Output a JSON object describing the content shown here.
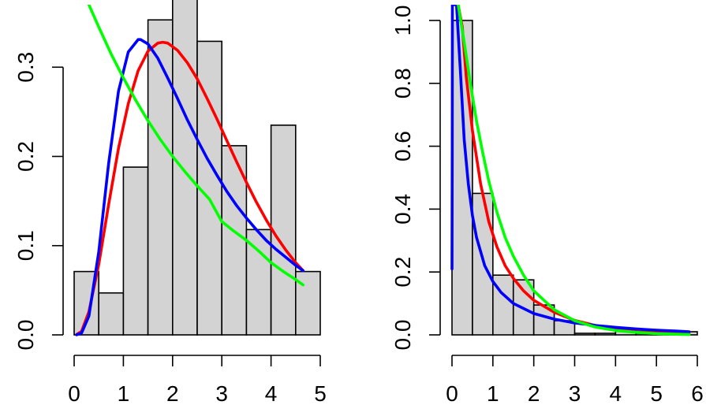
{
  "chart_data": [
    {
      "type": "histogram",
      "title": "",
      "xlabel": "",
      "ylabel": "",
      "xlim": [
        0,
        5
      ],
      "ylim": [
        0,
        0.37
      ],
      "x_ticks": [
        "0",
        "1",
        "2",
        "3",
        "4",
        "5"
      ],
      "y_ticks": [
        "0.0",
        "0.1",
        "0.2",
        "0.3"
      ],
      "bar_fill": "#d3d3d3",
      "bars": [
        {
          "x0": 0.0,
          "x1": 0.5,
          "density": 0.071
        },
        {
          "x0": 0.5,
          "x1": 1.0,
          "density": 0.047
        },
        {
          "x0": 1.0,
          "x1": 1.5,
          "density": 0.188
        },
        {
          "x0": 1.5,
          "x1": 2.0,
          "density": 0.353
        },
        {
          "x0": 2.0,
          "x1": 2.5,
          "density": 0.376
        },
        {
          "x0": 2.5,
          "x1": 3.0,
          "density": 0.329
        },
        {
          "x0": 3.0,
          "x1": 3.5,
          "density": 0.212
        },
        {
          "x0": 3.5,
          "x1": 4.0,
          "density": 0.118
        },
        {
          "x0": 4.0,
          "x1": 4.5,
          "density": 0.235
        },
        {
          "x0": 4.5,
          "x1": 5.0,
          "density": 0.071
        }
      ],
      "series": [
        {
          "color": "#ff0000",
          "points": [
            [
              0.05,
              0.0004
            ],
            [
              0.15,
              0.004
            ],
            [
              0.3,
              0.026
            ],
            [
              0.5,
              0.079
            ],
            [
              0.7,
              0.146
            ],
            [
              0.9,
              0.209
            ],
            [
              1.1,
              0.259
            ],
            [
              1.3,
              0.296
            ],
            [
              1.5,
              0.318
            ],
            [
              1.7,
              0.327
            ],
            [
              1.8,
              0.328
            ],
            [
              1.9,
              0.327
            ],
            [
              2.1,
              0.319
            ],
            [
              2.3,
              0.305
            ],
            [
              2.5,
              0.287
            ],
            [
              2.7,
              0.265
            ],
            [
              2.9,
              0.242
            ],
            [
              3.1,
              0.218
            ],
            [
              3.3,
              0.194
            ],
            [
              3.5,
              0.171
            ],
            [
              3.7,
              0.149
            ],
            [
              3.9,
              0.129
            ],
            [
              4.1,
              0.111
            ],
            [
              4.3,
              0.095
            ],
            [
              4.5,
              0.081
            ],
            [
              4.65,
              0.072
            ]
          ]
        },
        {
          "color": "#0000ff",
          "points": [
            [
              0.05,
              0.0001
            ],
            [
              0.15,
              0.002
            ],
            [
              0.3,
              0.021
            ],
            [
              0.5,
              0.093
            ],
            [
              0.7,
              0.192
            ],
            [
              0.9,
              0.273
            ],
            [
              1.1,
              0.317
            ],
            [
              1.3,
              0.331
            ],
            [
              1.35,
              0.331
            ],
            [
              1.5,
              0.326
            ],
            [
              1.7,
              0.31
            ],
            [
              1.9,
              0.288
            ],
            [
              2.1,
              0.265
            ],
            [
              2.3,
              0.241
            ],
            [
              2.5,
              0.219
            ],
            [
              2.7,
              0.198
            ],
            [
              2.9,
              0.179
            ],
            [
              3.1,
              0.161
            ],
            [
              3.3,
              0.145
            ],
            [
              3.5,
              0.131
            ],
            [
              3.7,
              0.118
            ],
            [
              3.9,
              0.106
            ],
            [
              4.1,
              0.096
            ],
            [
              4.3,
              0.087
            ],
            [
              4.5,
              0.078
            ],
            [
              4.65,
              0.072
            ]
          ]
        },
        {
          "color": "#00ff00",
          "points": [
            [
              0.3,
              0.37
            ],
            [
              0.5,
              0.345
            ],
            [
              0.75,
              0.315
            ],
            [
              1.0,
              0.288
            ],
            [
              1.25,
              0.263
            ],
            [
              1.5,
              0.24
            ],
            [
              1.75,
              0.219
            ],
            [
              2.0,
              0.2
            ],
            [
              2.25,
              0.183
            ],
            [
              2.5,
              0.167
            ],
            [
              2.75,
              0.152
            ],
            [
              3.0,
              0.127
            ],
            [
              3.25,
              0.116
            ],
            [
              3.5,
              0.106
            ],
            [
              3.75,
              0.094
            ],
            [
              4.0,
              0.081
            ],
            [
              4.25,
              0.071
            ],
            [
              4.5,
              0.062
            ],
            [
              4.65,
              0.056
            ]
          ]
        }
      ]
    },
    {
      "type": "histogram",
      "title": "",
      "xlabel": "",
      "ylabel": "",
      "xlim": [
        0,
        6
      ],
      "ylim": [
        0,
        1.05
      ],
      "x_ticks": [
        "0",
        "1",
        "2",
        "3",
        "4",
        "5",
        "6"
      ],
      "y_ticks": [
        "0.0",
        "0.2",
        "0.4",
        "0.6",
        "0.8",
        "1.0"
      ],
      "bar_fill": "#d3d3d3",
      "bars": [
        {
          "x0": 0.0,
          "x1": 0.5,
          "density": 1.0
        },
        {
          "x0": 0.5,
          "x1": 1.0,
          "density": 0.45
        },
        {
          "x0": 1.0,
          "x1": 1.5,
          "density": 0.19
        },
        {
          "x0": 1.5,
          "x1": 2.0,
          "density": 0.175
        },
        {
          "x0": 2.0,
          "x1": 2.5,
          "density": 0.095
        },
        {
          "x0": 2.5,
          "x1": 3.0,
          "density": 0.045
        },
        {
          "x0": 3.0,
          "x1": 3.5,
          "density": 0.005
        },
        {
          "x0": 3.5,
          "x1": 4.0,
          "density": 0.005
        },
        {
          "x0": 4.0,
          "x1": 4.5,
          "density": 0.015
        },
        {
          "x0": 4.5,
          "x1": 5.0,
          "density": 0.005
        },
        {
          "x0": 5.0,
          "x1": 5.5,
          "density": 0.005
        },
        {
          "x0": 5.5,
          "x1": 6.0,
          "density": 0.01
        }
      ],
      "series": [
        {
          "color": "#ff0000",
          "points": [
            [
              0.15,
              1.05
            ],
            [
              0.25,
              0.98
            ],
            [
              0.35,
              0.82
            ],
            [
              0.5,
              0.65
            ],
            [
              0.7,
              0.48
            ],
            [
              0.9,
              0.36
            ],
            [
              1.1,
              0.28
            ],
            [
              1.3,
              0.22
            ],
            [
              1.5,
              0.18
            ],
            [
              1.75,
              0.14
            ],
            [
              2.0,
              0.11
            ],
            [
              2.5,
              0.072
            ],
            [
              3.0,
              0.046
            ],
            [
              3.5,
              0.03
            ],
            [
              4.0,
              0.019
            ],
            [
              4.5,
              0.012
            ],
            [
              5.0,
              0.008
            ],
            [
              5.5,
              0.005
            ],
            [
              5.8,
              0.004
            ]
          ]
        },
        {
          "color": "#0000ff",
          "points": [
            [
              0.0,
              0.21
            ],
            [
              0.005,
              0.6
            ],
            [
              0.01,
              1.05
            ],
            [
              0.11,
              1.05
            ],
            [
              0.2,
              0.85
            ],
            [
              0.3,
              0.62
            ],
            [
              0.4,
              0.48
            ],
            [
              0.5,
              0.38
            ],
            [
              0.6,
              0.31
            ],
            [
              0.8,
              0.22
            ],
            [
              1.0,
              0.17
            ],
            [
              1.2,
              0.135
            ],
            [
              1.5,
              0.1
            ],
            [
              2.0,
              0.068
            ],
            [
              2.5,
              0.05
            ],
            [
              3.0,
              0.038
            ],
            [
              3.5,
              0.03
            ],
            [
              4.0,
              0.024
            ],
            [
              4.5,
              0.019
            ],
            [
              5.0,
              0.015
            ],
            [
              5.5,
              0.012
            ],
            [
              5.8,
              0.01
            ]
          ]
        },
        {
          "color": "#00ff00",
          "points": [
            [
              0.15,
              1.05
            ],
            [
              0.3,
              0.93
            ],
            [
              0.45,
              0.8
            ],
            [
              0.6,
              0.68
            ],
            [
              0.75,
              0.58
            ],
            [
              0.9,
              0.49
            ],
            [
              1.1,
              0.39
            ],
            [
              1.3,
              0.31
            ],
            [
              1.5,
              0.25
            ],
            [
              1.75,
              0.19
            ],
            [
              2.0,
              0.14
            ],
            [
              2.5,
              0.08
            ],
            [
              3.0,
              0.045
            ],
            [
              3.5,
              0.025
            ],
            [
              4.0,
              0.014
            ],
            [
              4.5,
              0.008
            ],
            [
              5.0,
              0.004
            ],
            [
              5.5,
              0.002
            ],
            [
              5.8,
              0.001
            ]
          ]
        }
      ]
    }
  ]
}
